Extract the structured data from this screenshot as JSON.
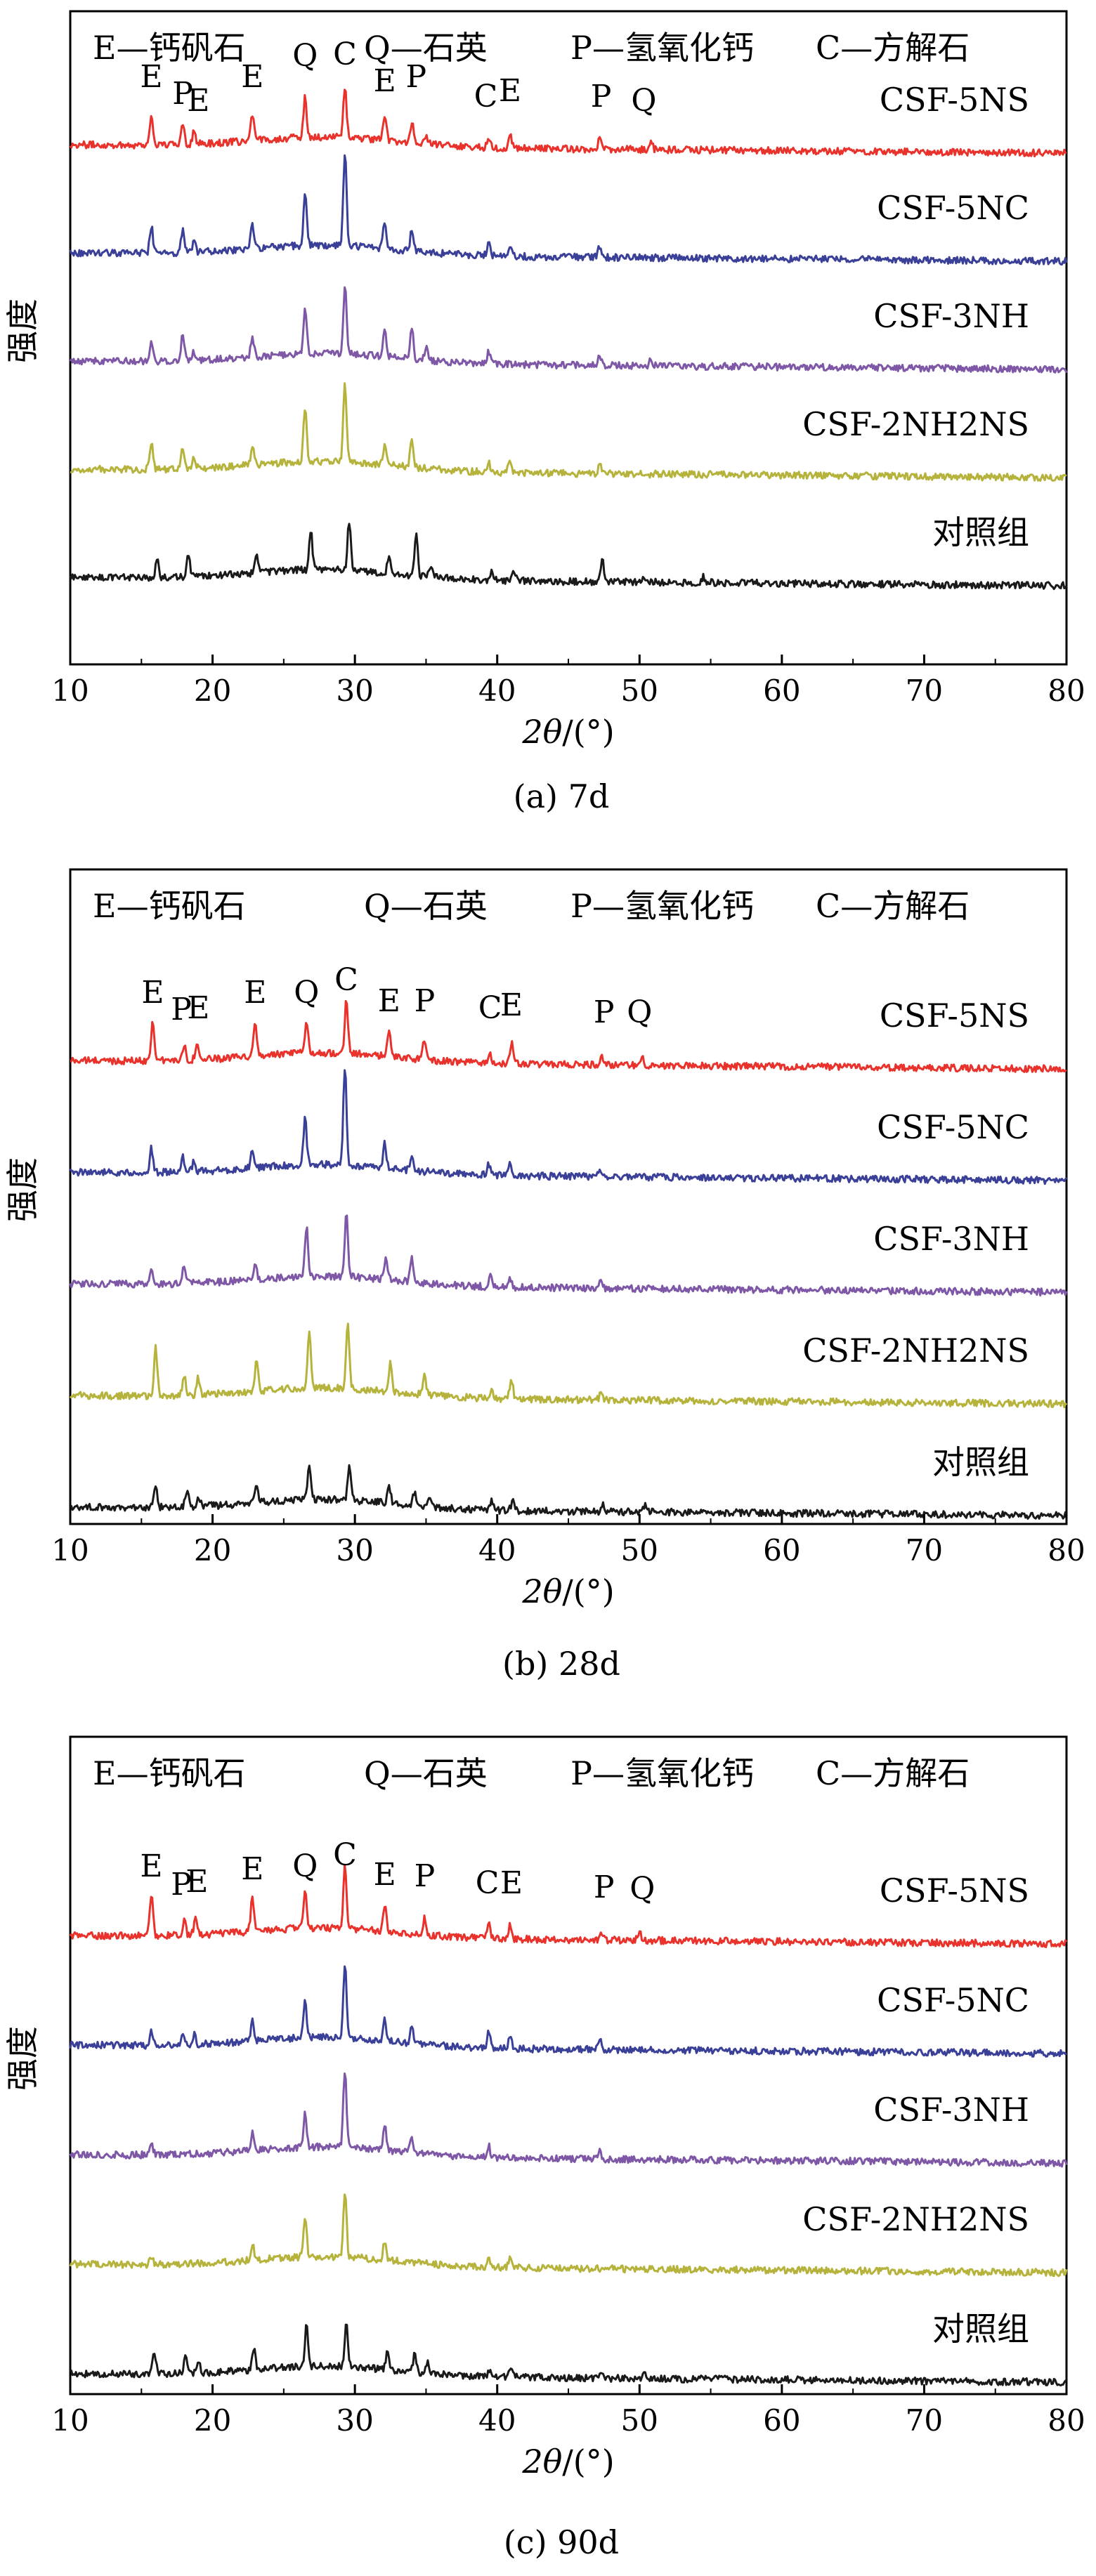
{
  "chart_data": [
    {
      "type": "line",
      "caption": "(a) 7d",
      "legend": [
        "E—钙矾石",
        "Q—石英",
        "P—氢氧化钙",
        "C—方解石"
      ],
      "xlabel_italic": "2θ",
      "xlabel_unit": "/(°)",
      "ylabel": "强度",
      "xlim": [
        10,
        80
      ],
      "xticks": [
        "10",
        "20",
        "30",
        "40",
        "50",
        "60",
        "70",
        "80"
      ],
      "series": [
        {
          "name": "CSF-5NS",
          "color": "#e8322b",
          "peaks": [
            [
              15.7,
              42
            ],
            [
              17.9,
              32
            ],
            [
              18.7,
              18
            ],
            [
              22.8,
              36
            ],
            [
              26.5,
              56
            ],
            [
              29.3,
              72
            ],
            [
              32.1,
              34
            ],
            [
              34.0,
              30
            ],
            [
              35.0,
              14
            ],
            [
              39.4,
              14
            ],
            [
              40.9,
              18
            ],
            [
              47.2,
              14
            ],
            [
              50.8,
              10
            ]
          ]
        },
        {
          "name": "CSF-5NC",
          "color": "#3a3f98",
          "peaks": [
            [
              15.7,
              38
            ],
            [
              17.9,
              32
            ],
            [
              18.7,
              14
            ],
            [
              22.8,
              36
            ],
            [
              26.5,
              72
            ],
            [
              29.3,
              132
            ],
            [
              32.1,
              40
            ],
            [
              34.0,
              30
            ],
            [
              39.4,
              18
            ],
            [
              40.9,
              16
            ],
            [
              47.2,
              16
            ]
          ]
        },
        {
          "name": "CSF-3NH",
          "color": "#7e57a6",
          "peaks": [
            [
              15.7,
              26
            ],
            [
              17.9,
              36
            ],
            [
              18.7,
              12
            ],
            [
              22.8,
              26
            ],
            [
              26.5,
              66
            ],
            [
              29.3,
              96
            ],
            [
              32.1,
              36
            ],
            [
              34.0,
              44
            ],
            [
              35.0,
              18
            ],
            [
              39.4,
              16
            ],
            [
              47.2,
              14
            ],
            [
              50.8,
              10
            ]
          ]
        },
        {
          "name": "CSF-2NH2NS",
          "color": "#b6b33c",
          "peaks": [
            [
              15.7,
              36
            ],
            [
              17.9,
              30
            ],
            [
              18.7,
              14
            ],
            [
              22.8,
              30
            ],
            [
              26.5,
              78
            ],
            [
              29.3,
              112
            ],
            [
              32.1,
              30
            ],
            [
              34.0,
              40
            ],
            [
              39.4,
              14
            ],
            [
              40.9,
              16
            ],
            [
              47.2,
              12
            ]
          ]
        },
        {
          "name": "对照组",
          "color": "#1a1a1a",
          "peaks": [
            [
              16.1,
              26
            ],
            [
              18.3,
              34
            ],
            [
              23.1,
              22
            ],
            [
              26.9,
              56
            ],
            [
              29.6,
              70
            ],
            [
              32.4,
              28
            ],
            [
              34.3,
              58
            ],
            [
              35.3,
              16
            ],
            [
              39.6,
              12
            ],
            [
              41.2,
              14
            ],
            [
              47.4,
              30
            ],
            [
              50.3,
              10
            ],
            [
              54.5,
              8
            ]
          ]
        }
      ],
      "annotations": [
        {
          "text": "E",
          "x": 15.7
        },
        {
          "text": "P",
          "x": 17.9
        },
        {
          "text": "E",
          "x": 19.0
        },
        {
          "text": "E",
          "x": 22.8
        },
        {
          "text": "Q",
          "x": 26.5
        },
        {
          "text": "C",
          "x": 29.3
        },
        {
          "text": "E",
          "x": 32.1
        },
        {
          "text": "P",
          "x": 34.3
        },
        {
          "text": "C",
          "x": 39.2
        },
        {
          "text": "E",
          "x": 40.9
        },
        {
          "text": "P",
          "x": 47.3
        },
        {
          "text": "Q",
          "x": 50.3
        }
      ]
    },
    {
      "type": "line",
      "caption": "(b) 28d",
      "legend": [
        "E—钙矾石",
        "Q—石英",
        "P—氢氧化钙",
        "C—方解石"
      ],
      "xlabel_italic": "2θ",
      "xlabel_unit": "/(°)",
      "ylabel": "强度",
      "xlim": [
        10,
        80
      ],
      "xticks": [
        "10",
        "20",
        "30",
        "40",
        "50",
        "60",
        "70",
        "80"
      ],
      "series": [
        {
          "name": "CSF-5NS",
          "color": "#e8322b",
          "peaks": [
            [
              15.8,
              58
            ],
            [
              18.0,
              22
            ],
            [
              18.9,
              24
            ],
            [
              23.0,
              46
            ],
            [
              26.6,
              46
            ],
            [
              29.4,
              78
            ],
            [
              32.4,
              36
            ],
            [
              34.9,
              30
            ],
            [
              39.5,
              14
            ],
            [
              41.0,
              30
            ],
            [
              47.3,
              12
            ],
            [
              50.2,
              12
            ]
          ]
        },
        {
          "name": "CSF-5NC",
          "color": "#3a3f98",
          "peaks": [
            [
              15.7,
              34
            ],
            [
              17.9,
              22
            ],
            [
              18.7,
              14
            ],
            [
              22.8,
              28
            ],
            [
              26.5,
              66
            ],
            [
              29.3,
              140
            ],
            [
              32.1,
              34
            ],
            [
              34.0,
              20
            ],
            [
              39.4,
              16
            ],
            [
              40.9,
              16
            ],
            [
              47.2,
              12
            ]
          ]
        },
        {
          "name": "CSF-3NH",
          "color": "#7e57a6",
          "peaks": [
            [
              15.7,
              20
            ],
            [
              18.0,
              28
            ],
            [
              23.0,
              20
            ],
            [
              26.6,
              70
            ],
            [
              29.4,
              88
            ],
            [
              32.2,
              30
            ],
            [
              34.0,
              36
            ],
            [
              39.5,
              14
            ],
            [
              40.9,
              14
            ],
            [
              47.2,
              10
            ]
          ]
        },
        {
          "name": "CSF-2NH2NS",
          "color": "#b6b33c",
          "peaks": [
            [
              16.0,
              68
            ],
            [
              18.0,
              30
            ],
            [
              19.0,
              24
            ],
            [
              23.1,
              46
            ],
            [
              26.8,
              82
            ],
            [
              29.5,
              90
            ],
            [
              32.5,
              44
            ],
            [
              34.9,
              28
            ],
            [
              39.6,
              14
            ],
            [
              41.0,
              28
            ],
            [
              47.3,
              10
            ]
          ]
        },
        {
          "name": "对照组",
          "color": "#1a1a1a",
          "peaks": [
            [
              16.0,
              30
            ],
            [
              18.2,
              24
            ],
            [
              19.0,
              14
            ],
            [
              23.1,
              24
            ],
            [
              26.8,
              48
            ],
            [
              29.6,
              48
            ],
            [
              32.4,
              24
            ],
            [
              34.2,
              20
            ],
            [
              35.2,
              14
            ],
            [
              39.6,
              12
            ],
            [
              41.1,
              16
            ],
            [
              47.4,
              12
            ],
            [
              50.4,
              8
            ]
          ]
        }
      ],
      "annotations": [
        {
          "text": "E",
          "x": 15.8
        },
        {
          "text": "P",
          "x": 17.8
        },
        {
          "text": "E",
          "x": 19.0
        },
        {
          "text": "E",
          "x": 23.0
        },
        {
          "text": "Q",
          "x": 26.6
        },
        {
          "text": "C",
          "x": 29.4
        },
        {
          "text": "E",
          "x": 32.4
        },
        {
          "text": "P",
          "x": 34.9
        },
        {
          "text": "C",
          "x": 39.5
        },
        {
          "text": "E",
          "x": 41.0
        },
        {
          "text": "P",
          "x": 47.5
        },
        {
          "text": "Q",
          "x": 50.0
        }
      ]
    },
    {
      "type": "line",
      "caption": "(c) 90d",
      "legend": [
        "E—钙矾石",
        "Q—石英",
        "P—氢氧化钙",
        "C—方解石"
      ],
      "xlabel_italic": "2θ",
      "xlabel_unit": "/(°)",
      "ylabel": "强度",
      "xlim": [
        10,
        80
      ],
      "xticks": [
        "10",
        "20",
        "30",
        "40",
        "50",
        "60",
        "70",
        "80"
      ],
      "series": [
        {
          "name": "CSF-5NS",
          "color": "#e8322b",
          "peaks": [
            [
              15.7,
              60
            ],
            [
              18.0,
              20
            ],
            [
              18.8,
              24
            ],
            [
              22.8,
              50
            ],
            [
              26.5,
              56
            ],
            [
              29.3,
              88
            ],
            [
              32.1,
              38
            ],
            [
              34.9,
              24
            ],
            [
              39.4,
              20
            ],
            [
              40.9,
              20
            ],
            [
              47.3,
              14
            ],
            [
              50.0,
              12
            ]
          ]
        },
        {
          "name": "CSF-5NC",
          "color": "#3a3f98",
          "peaks": [
            [
              15.7,
              20
            ],
            [
              17.9,
              12
            ],
            [
              18.7,
              14
            ],
            [
              22.8,
              30
            ],
            [
              26.5,
              50
            ],
            [
              29.3,
              108
            ],
            [
              32.1,
              30
            ],
            [
              34.0,
              22
            ],
            [
              39.4,
              22
            ],
            [
              40.9,
              16
            ],
            [
              47.2,
              14
            ]
          ]
        },
        {
          "name": "CSF-3NH",
          "color": "#7e57a6",
          "peaks": [
            [
              15.7,
              16
            ],
            [
              22.8,
              24
            ],
            [
              26.5,
              50
            ],
            [
              29.3,
              110
            ],
            [
              32.1,
              34
            ],
            [
              34.0,
              20
            ],
            [
              39.4,
              16
            ],
            [
              47.2,
              12
            ]
          ]
        },
        {
          "name": "CSF-2NH2NS",
          "color": "#b6b33c",
          "peaks": [
            [
              15.7,
              12
            ],
            [
              22.8,
              24
            ],
            [
              26.5,
              56
            ],
            [
              29.3,
              92
            ],
            [
              32.1,
              26
            ],
            [
              39.4,
              14
            ],
            [
              40.9,
              12
            ]
          ]
        },
        {
          "name": "对照组",
          "color": "#1a1a1a",
          "peaks": [
            [
              15.9,
              32
            ],
            [
              18.1,
              26
            ],
            [
              19.0,
              16
            ],
            [
              22.9,
              32
            ],
            [
              26.6,
              58
            ],
            [
              29.4,
              60
            ],
            [
              32.3,
              28
            ],
            [
              34.2,
              24
            ],
            [
              35.1,
              16
            ],
            [
              39.5,
              12
            ],
            [
              41.0,
              16
            ],
            [
              47.3,
              12
            ],
            [
              50.3,
              8
            ]
          ]
        }
      ],
      "annotations": [
        {
          "text": "E",
          "x": 15.7
        },
        {
          "text": "P",
          "x": 17.8
        },
        {
          "text": "E",
          "x": 18.9
        },
        {
          "text": "E",
          "x": 22.8
        },
        {
          "text": "Q",
          "x": 26.5
        },
        {
          "text": "C",
          "x": 29.3
        },
        {
          "text": "E",
          "x": 32.1
        },
        {
          "text": "P",
          "x": 34.9
        },
        {
          "text": "C",
          "x": 39.3
        },
        {
          "text": "E",
          "x": 41.0
        },
        {
          "text": "P",
          "x": 47.5
        },
        {
          "text": "Q",
          "x": 50.2
        }
      ]
    }
  ]
}
